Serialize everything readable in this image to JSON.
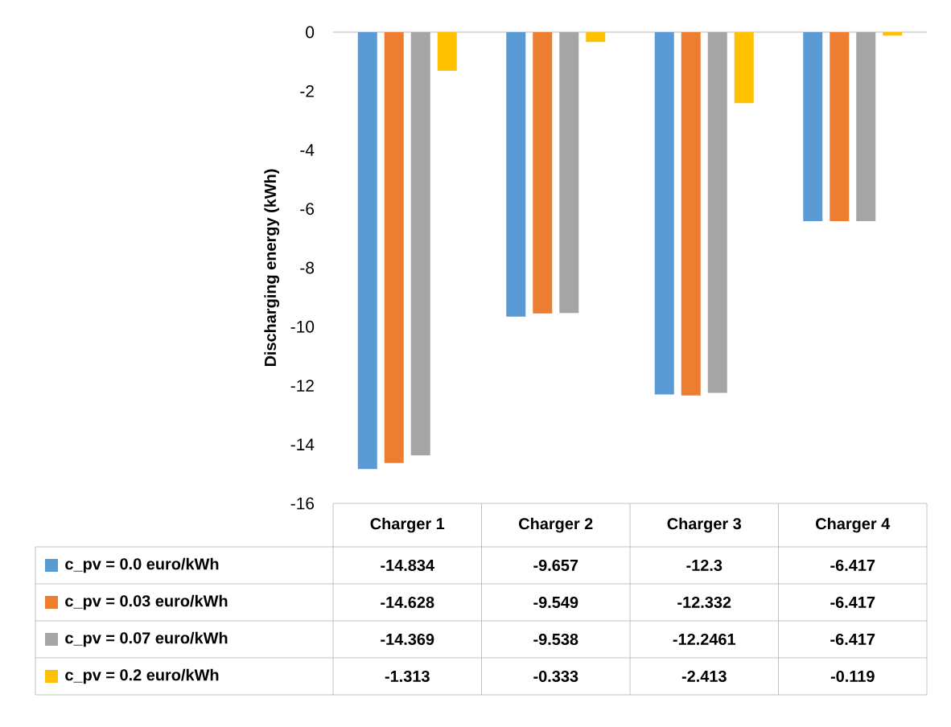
{
  "chart_data": {
    "type": "bar",
    "ylabel": "Discharging energy (kWh)",
    "categories": [
      "Charger 1",
      "Charger 2",
      "Charger 3",
      "Charger 4"
    ],
    "series": [
      {
        "name": "c_pv = 0.0 euro/kWh",
        "color": "#5b9bd5",
        "values": [
          -14.834,
          -9.657,
          -12.3,
          -6.417
        ]
      },
      {
        "name": "c_pv = 0.03 euro/kWh",
        "color": "#ed7d31",
        "values": [
          -14.628,
          -9.549,
          -12.332,
          -6.417
        ]
      },
      {
        "name": "c_pv = 0.07 euro/kWh",
        "color": "#a5a5a5",
        "values": [
          -14.369,
          -9.538,
          -12.2461,
          -6.417
        ]
      },
      {
        "name": "c_pv = 0.2 euro/kWh",
        "color": "#ffc000",
        "values": [
          -1.313,
          -0.333,
          -2.413,
          -0.119
        ]
      }
    ],
    "ylim": [
      -16,
      0
    ],
    "yticks": [
      -16,
      -14,
      -12,
      -10,
      -8,
      -6,
      -4,
      -2,
      0
    ],
    "data_labels": true,
    "legend": "bottom"
  }
}
